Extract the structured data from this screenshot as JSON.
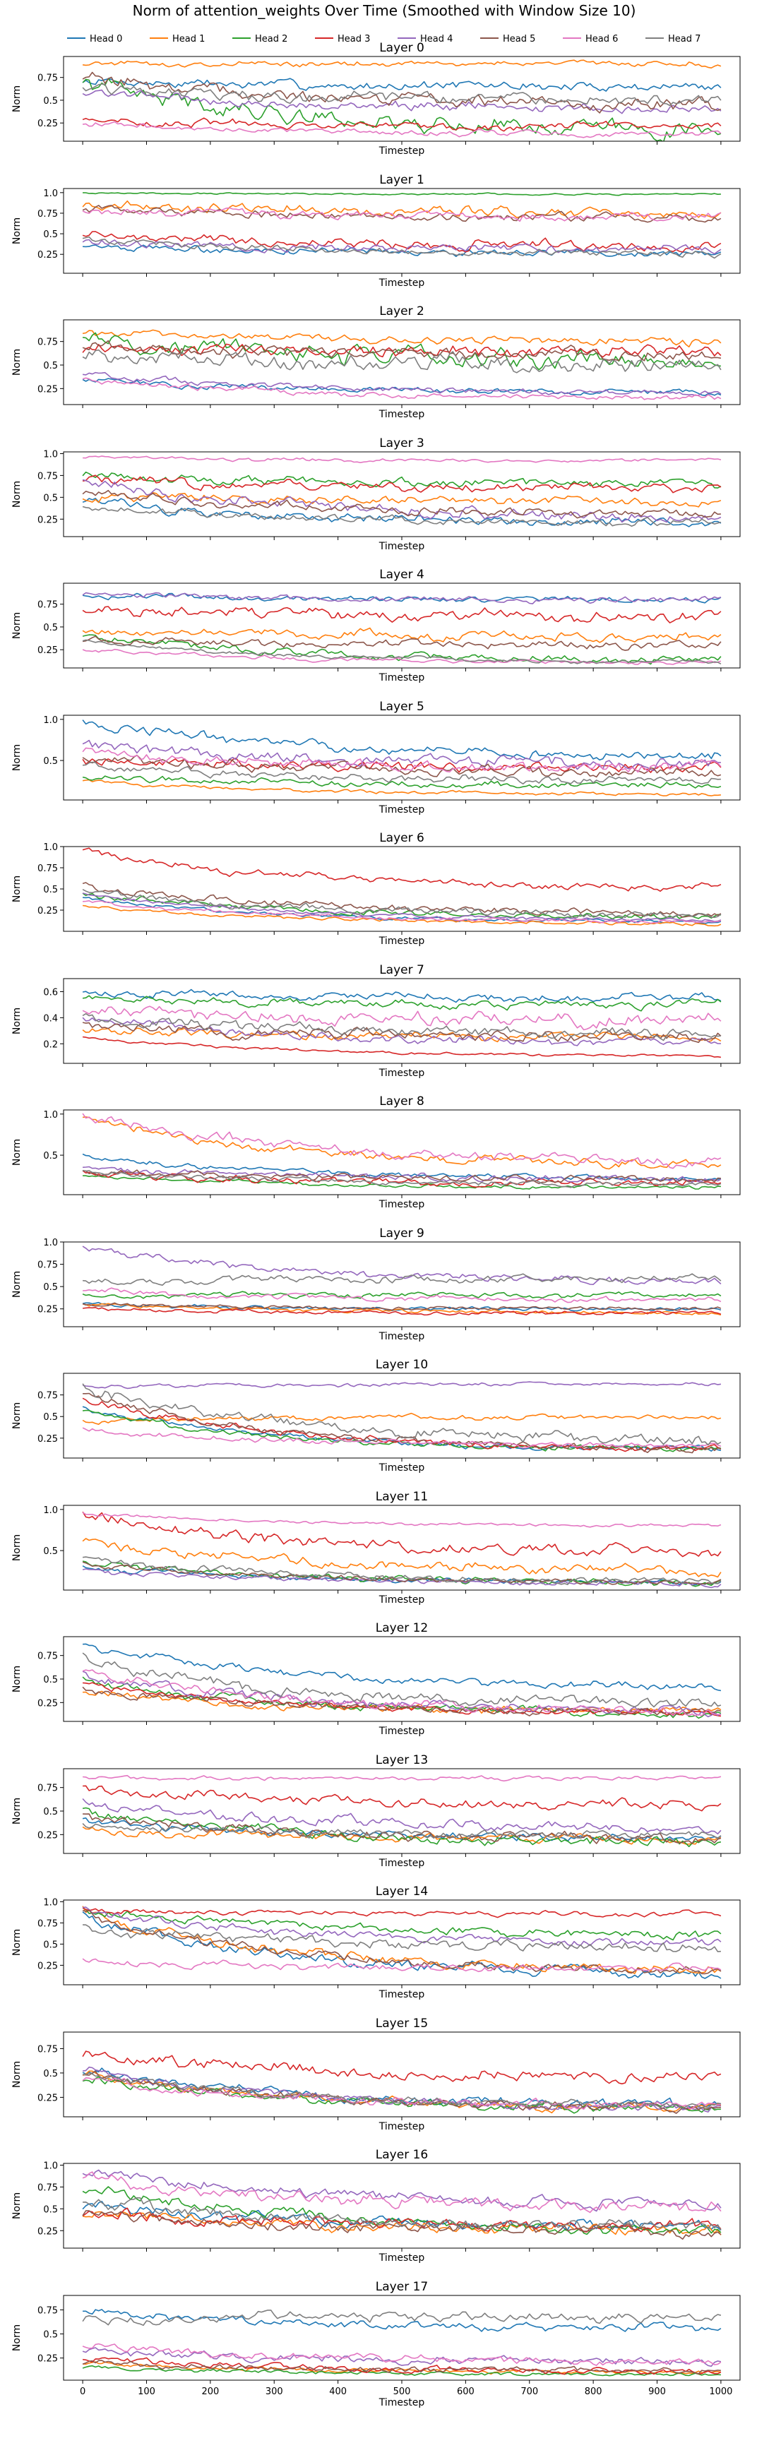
{
  "figure": {
    "title": "Norm of attention_weights Over Time (Smoothed with Window Size 10)"
  },
  "legend": {
    "placement": "top-center",
    "entries": [
      "Head 0",
      "Head 1",
      "Head 2",
      "Head 3",
      "Head 4",
      "Head 5",
      "Head 6",
      "Head 7"
    ]
  },
  "colors": [
    "#1f77b4",
    "#ff7f0e",
    "#2ca02c",
    "#d62728",
    "#9467bd",
    "#8c564b",
    "#e377c2",
    "#7f7f7f"
  ],
  "chart_data": {
    "type": "line",
    "xlabel": "Timestep",
    "ylabel": "Norm",
    "xlim": [
      -30,
      1030
    ],
    "xticks": [
      0,
      100,
      200,
      300,
      400,
      500,
      600,
      700,
      800,
      900,
      1000
    ],
    "grid": false,
    "panels": [
      {
        "title": "Layer 0",
        "ylim": [
          0.05,
          0.98
        ],
        "yticks": [
          0.25,
          0.5,
          0.75
        ],
        "series": [
          {
            "start": 0.7,
            "end": 0.65,
            "noise": 0.05
          },
          {
            "start": 0.9,
            "end": 0.9,
            "noise": 0.03
          },
          {
            "start": 0.7,
            "end": 0.15,
            "noise": 0.09
          },
          {
            "start": 0.3,
            "end": 0.2,
            "noise": 0.04
          },
          {
            "start": 0.6,
            "end": 0.4,
            "noise": 0.05
          },
          {
            "start": 0.75,
            "end": 0.45,
            "noise": 0.07
          },
          {
            "start": 0.25,
            "end": 0.12,
            "noise": 0.03
          },
          {
            "start": 0.65,
            "end": 0.5,
            "noise": 0.06
          }
        ]
      },
      {
        "title": "Layer 1",
        "ylim": [
          0.02,
          1.05
        ],
        "yticks": [
          0.25,
          0.5,
          0.75,
          1.0
        ],
        "series": [
          {
            "start": 0.35,
            "end": 0.25,
            "noise": 0.04
          },
          {
            "start": 0.85,
            "end": 0.75,
            "noise": 0.06
          },
          {
            "start": 1.0,
            "end": 0.98,
            "noise": 0.01
          },
          {
            "start": 0.5,
            "end": 0.35,
            "noise": 0.06
          },
          {
            "start": 0.4,
            "end": 0.3,
            "noise": 0.05
          },
          {
            "start": 0.8,
            "end": 0.7,
            "noise": 0.05
          },
          {
            "start": 0.8,
            "end": 0.7,
            "noise": 0.05
          },
          {
            "start": 0.45,
            "end": 0.25,
            "noise": 0.04
          }
        ]
      },
      {
        "title": "Layer 2",
        "ylim": [
          0.08,
          0.98
        ],
        "yticks": [
          0.25,
          0.5,
          0.75
        ],
        "series": [
          {
            "start": 0.35,
            "end": 0.2,
            "noise": 0.03
          },
          {
            "start": 0.85,
            "end": 0.75,
            "noise": 0.04
          },
          {
            "start": 0.8,
            "end": 0.55,
            "noise": 0.09
          },
          {
            "start": 0.65,
            "end": 0.65,
            "noise": 0.06
          },
          {
            "start": 0.4,
            "end": 0.2,
            "noise": 0.03
          },
          {
            "start": 0.7,
            "end": 0.6,
            "noise": 0.06
          },
          {
            "start": 0.35,
            "end": 0.15,
            "noise": 0.03
          },
          {
            "start": 0.6,
            "end": 0.5,
            "noise": 0.08
          }
        ]
      },
      {
        "title": "Layer 3",
        "ylim": [
          0.05,
          1.02
        ],
        "yticks": [
          0.25,
          0.5,
          0.75,
          1.0
        ],
        "series": [
          {
            "start": 0.45,
            "end": 0.2,
            "noise": 0.05
          },
          {
            "start": 0.5,
            "end": 0.45,
            "noise": 0.05
          },
          {
            "start": 0.75,
            "end": 0.65,
            "noise": 0.05
          },
          {
            "start": 0.7,
            "end": 0.6,
            "noise": 0.05
          },
          {
            "start": 0.7,
            "end": 0.25,
            "noise": 0.06
          },
          {
            "start": 0.55,
            "end": 0.3,
            "noise": 0.05
          },
          {
            "start": 0.95,
            "end": 0.92,
            "noise": 0.02
          },
          {
            "start": 0.4,
            "end": 0.2,
            "noise": 0.04
          }
        ]
      },
      {
        "title": "Layer 4",
        "ylim": [
          0.05,
          0.98
        ],
        "yticks": [
          0.25,
          0.5,
          0.75
        ],
        "series": [
          {
            "start": 0.85,
            "end": 0.8,
            "noise": 0.03
          },
          {
            "start": 0.45,
            "end": 0.4,
            "noise": 0.05
          },
          {
            "start": 0.4,
            "end": 0.12,
            "noise": 0.04
          },
          {
            "start": 0.7,
            "end": 0.6,
            "noise": 0.06
          },
          {
            "start": 0.85,
            "end": 0.8,
            "noise": 0.03
          },
          {
            "start": 0.35,
            "end": 0.3,
            "noise": 0.04
          },
          {
            "start": 0.25,
            "end": 0.1,
            "noise": 0.02
          },
          {
            "start": 0.35,
            "end": 0.1,
            "noise": 0.02
          }
        ]
      },
      {
        "title": "Layer 5",
        "ylim": [
          0.02,
          1.05
        ],
        "yticks": [
          0.5,
          1.0
        ],
        "series": [
          {
            "start": 1.0,
            "end": 0.55,
            "noise": 0.06
          },
          {
            "start": 0.25,
            "end": 0.08,
            "noise": 0.02
          },
          {
            "start": 0.3,
            "end": 0.2,
            "noise": 0.04
          },
          {
            "start": 0.5,
            "end": 0.4,
            "noise": 0.06
          },
          {
            "start": 0.7,
            "end": 0.45,
            "noise": 0.07
          },
          {
            "start": 0.55,
            "end": 0.35,
            "noise": 0.06
          },
          {
            "start": 0.6,
            "end": 0.4,
            "noise": 0.06
          },
          {
            "start": 0.45,
            "end": 0.25,
            "noise": 0.05
          }
        ]
      },
      {
        "title": "Layer 6",
        "ylim": [
          0.0,
          1.0
        ],
        "yticks": [
          0.25,
          0.5,
          0.75,
          1.0
        ],
        "series": [
          {
            "start": 0.4,
            "end": 0.1,
            "noise": 0.02
          },
          {
            "start": 0.3,
            "end": 0.08,
            "noise": 0.02
          },
          {
            "start": 0.45,
            "end": 0.15,
            "noise": 0.03
          },
          {
            "start": 0.95,
            "end": 0.5,
            "noise": 0.04
          },
          {
            "start": 0.45,
            "end": 0.12,
            "noise": 0.02
          },
          {
            "start": 0.55,
            "end": 0.2,
            "noise": 0.04
          },
          {
            "start": 0.35,
            "end": 0.1,
            "noise": 0.02
          },
          {
            "start": 0.5,
            "end": 0.18,
            "noise": 0.04
          }
        ]
      },
      {
        "title": "Layer 7",
        "ylim": [
          0.05,
          0.7
        ],
        "yticks": [
          0.2,
          0.4,
          0.6
        ],
        "series": [
          {
            "start": 0.6,
            "end": 0.55,
            "noise": 0.03
          },
          {
            "start": 0.3,
            "end": 0.25,
            "noise": 0.03
          },
          {
            "start": 0.55,
            "end": 0.5,
            "noise": 0.03
          },
          {
            "start": 0.25,
            "end": 0.1,
            "noise": 0.01
          },
          {
            "start": 0.4,
            "end": 0.2,
            "noise": 0.03
          },
          {
            "start": 0.35,
            "end": 0.25,
            "noise": 0.04
          },
          {
            "start": 0.45,
            "end": 0.38,
            "noise": 0.05
          },
          {
            "start": 0.4,
            "end": 0.28,
            "noise": 0.04
          }
        ]
      },
      {
        "title": "Layer 8",
        "ylim": [
          0.02,
          1.05
        ],
        "yticks": [
          0.5,
          1.0
        ],
        "series": [
          {
            "start": 0.5,
            "end": 0.2,
            "noise": 0.03
          },
          {
            "start": 0.95,
            "end": 0.35,
            "noise": 0.05
          },
          {
            "start": 0.25,
            "end": 0.1,
            "noise": 0.02
          },
          {
            "start": 0.3,
            "end": 0.15,
            "noise": 0.04
          },
          {
            "start": 0.35,
            "end": 0.2,
            "noise": 0.04
          },
          {
            "start": 0.3,
            "end": 0.2,
            "noise": 0.04
          },
          {
            "start": 1.0,
            "end": 0.4,
            "noise": 0.06
          },
          {
            "start": 0.3,
            "end": 0.15,
            "noise": 0.03
          }
        ]
      },
      {
        "title": "Layer 9",
        "ylim": [
          0.05,
          1.0
        ],
        "yticks": [
          0.25,
          0.5,
          0.75,
          1.0
        ],
        "series": [
          {
            "start": 0.3,
            "end": 0.25,
            "noise": 0.02
          },
          {
            "start": 0.3,
            "end": 0.2,
            "noise": 0.02
          },
          {
            "start": 0.4,
            "end": 0.4,
            "noise": 0.03
          },
          {
            "start": 0.25,
            "end": 0.2,
            "noise": 0.02
          },
          {
            "start": 0.95,
            "end": 0.55,
            "noise": 0.04
          },
          {
            "start": 0.3,
            "end": 0.25,
            "noise": 0.02
          },
          {
            "start": 0.45,
            "end": 0.35,
            "noise": 0.03
          },
          {
            "start": 0.55,
            "end": 0.6,
            "noise": 0.04
          }
        ]
      },
      {
        "title": "Layer 10",
        "ylim": [
          0.02,
          1.0
        ],
        "yticks": [
          0.25,
          0.5,
          0.75
        ],
        "series": [
          {
            "start": 0.6,
            "end": 0.1,
            "noise": 0.03
          },
          {
            "start": 0.45,
            "end": 0.5,
            "noise": 0.03
          },
          {
            "start": 0.55,
            "end": 0.1,
            "noise": 0.03
          },
          {
            "start": 0.7,
            "end": 0.1,
            "noise": 0.04
          },
          {
            "start": 0.85,
            "end": 0.88,
            "noise": 0.02
          },
          {
            "start": 0.75,
            "end": 0.1,
            "noise": 0.04
          },
          {
            "start": 0.35,
            "end": 0.15,
            "noise": 0.03
          },
          {
            "start": 0.85,
            "end": 0.2,
            "noise": 0.07
          }
        ]
      },
      {
        "title": "Layer 11",
        "ylim": [
          0.02,
          1.05
        ],
        "yticks": [
          0.5,
          1.0
        ],
        "series": [
          {
            "start": 0.3,
            "end": 0.1,
            "noise": 0.03
          },
          {
            "start": 0.6,
            "end": 0.25,
            "noise": 0.06
          },
          {
            "start": 0.35,
            "end": 0.1,
            "noise": 0.04
          },
          {
            "start": 0.95,
            "end": 0.45,
            "noise": 0.07
          },
          {
            "start": 0.25,
            "end": 0.1,
            "noise": 0.03
          },
          {
            "start": 0.35,
            "end": 0.1,
            "noise": 0.03
          },
          {
            "start": 0.95,
            "end": 0.8,
            "noise": 0.02
          },
          {
            "start": 0.4,
            "end": 0.12,
            "noise": 0.04
          }
        ]
      },
      {
        "title": "Layer 12",
        "ylim": [
          0.05,
          0.95
        ],
        "yticks": [
          0.25,
          0.5,
          0.75
        ],
        "series": [
          {
            "start": 0.85,
            "end": 0.4,
            "noise": 0.04
          },
          {
            "start": 0.35,
            "end": 0.15,
            "noise": 0.04
          },
          {
            "start": 0.5,
            "end": 0.12,
            "noise": 0.04
          },
          {
            "start": 0.45,
            "end": 0.12,
            "noise": 0.03
          },
          {
            "start": 0.55,
            "end": 0.15,
            "noise": 0.05
          },
          {
            "start": 0.4,
            "end": 0.15,
            "noise": 0.04
          },
          {
            "start": 0.55,
            "end": 0.15,
            "noise": 0.05
          },
          {
            "start": 0.75,
            "end": 0.2,
            "noise": 0.06
          }
        ]
      },
      {
        "title": "Layer 13",
        "ylim": [
          0.05,
          0.95
        ],
        "yticks": [
          0.25,
          0.5,
          0.75
        ],
        "series": [
          {
            "start": 0.4,
            "end": 0.2,
            "noise": 0.04
          },
          {
            "start": 0.3,
            "end": 0.2,
            "noise": 0.04
          },
          {
            "start": 0.5,
            "end": 0.15,
            "noise": 0.05
          },
          {
            "start": 0.75,
            "end": 0.55,
            "noise": 0.05
          },
          {
            "start": 0.6,
            "end": 0.3,
            "noise": 0.05
          },
          {
            "start": 0.45,
            "end": 0.2,
            "noise": 0.05
          },
          {
            "start": 0.85,
            "end": 0.85,
            "noise": 0.02
          },
          {
            "start": 0.35,
            "end": 0.25,
            "noise": 0.04
          }
        ]
      },
      {
        "title": "Layer 14",
        "ylim": [
          0.02,
          1.02
        ],
        "yticks": [
          0.25,
          0.5,
          0.75,
          1.0
        ],
        "series": [
          {
            "start": 0.85,
            "end": 0.12,
            "noise": 0.06
          },
          {
            "start": 0.9,
            "end": 0.15,
            "noise": 0.06
          },
          {
            "start": 0.9,
            "end": 0.6,
            "noise": 0.05
          },
          {
            "start": 0.9,
            "end": 0.85,
            "noise": 0.03
          },
          {
            "start": 0.9,
            "end": 0.5,
            "noise": 0.05
          },
          {
            "start": 0.85,
            "end": 0.15,
            "noise": 0.05
          },
          {
            "start": 0.3,
            "end": 0.2,
            "noise": 0.04
          },
          {
            "start": 0.7,
            "end": 0.45,
            "noise": 0.06
          }
        ]
      },
      {
        "title": "Layer 15",
        "ylim": [
          0.05,
          0.92
        ],
        "yticks": [
          0.25,
          0.5,
          0.75
        ],
        "series": [
          {
            "start": 0.55,
            "end": 0.15,
            "noise": 0.05
          },
          {
            "start": 0.5,
            "end": 0.12,
            "noise": 0.04
          },
          {
            "start": 0.45,
            "end": 0.12,
            "noise": 0.04
          },
          {
            "start": 0.7,
            "end": 0.45,
            "noise": 0.06
          },
          {
            "start": 0.55,
            "end": 0.12,
            "noise": 0.04
          },
          {
            "start": 0.5,
            "end": 0.12,
            "noise": 0.04
          },
          {
            "start": 0.45,
            "end": 0.15,
            "noise": 0.04
          },
          {
            "start": 0.5,
            "end": 0.15,
            "noise": 0.04
          }
        ]
      },
      {
        "title": "Layer 16",
        "ylim": [
          0.05,
          1.02
        ],
        "yticks": [
          0.25,
          0.5,
          0.75,
          1.0
        ],
        "series": [
          {
            "start": 0.55,
            "end": 0.3,
            "noise": 0.06
          },
          {
            "start": 0.45,
            "end": 0.25,
            "noise": 0.06
          },
          {
            "start": 0.75,
            "end": 0.25,
            "noise": 0.06
          },
          {
            "start": 0.45,
            "end": 0.3,
            "noise": 0.06
          },
          {
            "start": 0.95,
            "end": 0.55,
            "noise": 0.06
          },
          {
            "start": 0.45,
            "end": 0.25,
            "noise": 0.06
          },
          {
            "start": 0.9,
            "end": 0.5,
            "noise": 0.07
          },
          {
            "start": 0.6,
            "end": 0.3,
            "noise": 0.06
          }
        ]
      },
      {
        "title": "Layer 17",
        "ylim": [
          0.02,
          0.9
        ],
        "yticks": [
          0.25,
          0.5,
          0.75
        ],
        "series": [
          {
            "start": 0.75,
            "end": 0.55,
            "noise": 0.04
          },
          {
            "start": 0.2,
            "end": 0.1,
            "noise": 0.02
          },
          {
            "start": 0.15,
            "end": 0.08,
            "noise": 0.02
          },
          {
            "start": 0.25,
            "end": 0.1,
            "noise": 0.03
          },
          {
            "start": 0.35,
            "end": 0.2,
            "noise": 0.04
          },
          {
            "start": 0.2,
            "end": 0.12,
            "noise": 0.03
          },
          {
            "start": 0.4,
            "end": 0.2,
            "noise": 0.04
          },
          {
            "start": 0.65,
            "end": 0.68,
            "noise": 0.05
          }
        ]
      }
    ]
  }
}
